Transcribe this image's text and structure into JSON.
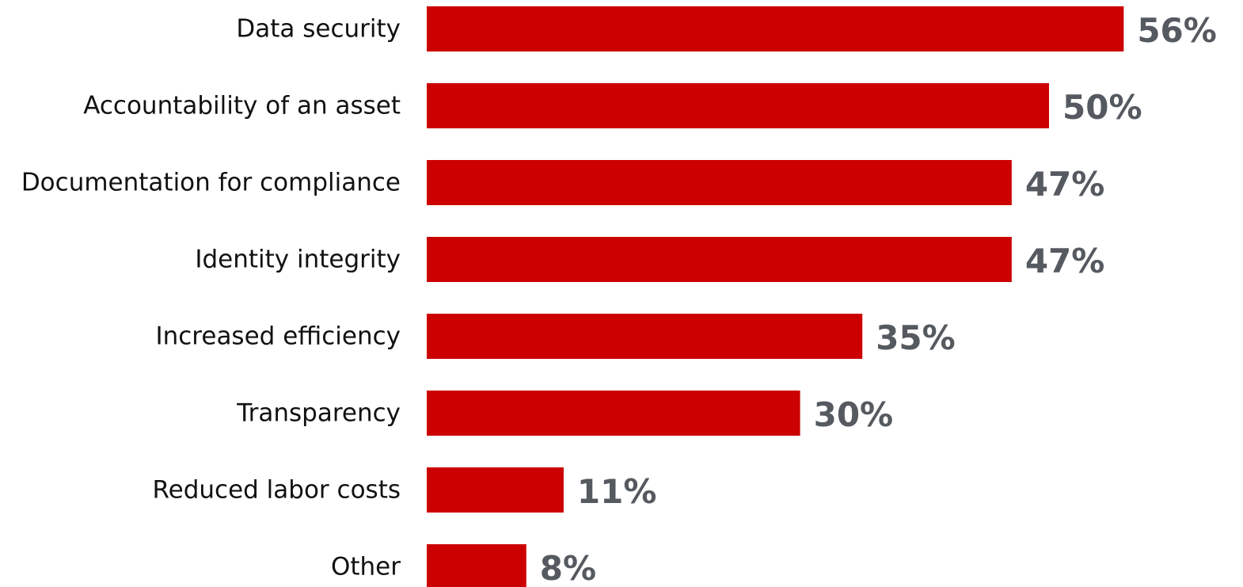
{
  "chart_data": {
    "type": "bar",
    "orientation": "horizontal",
    "title": "",
    "xlabel": "",
    "ylabel": "",
    "xlim": [
      0,
      100
    ],
    "grid": false,
    "legend": "none",
    "categories": [
      "Data security",
      "Accountability of an asset",
      "Documentation for compliance",
      "Identity integrity",
      "Increased efficiency",
      "Transparency",
      "Reduced labor costs",
      "Other"
    ],
    "values": [
      56,
      50,
      47,
      47,
      35,
      30,
      11,
      8
    ],
    "value_labels": [
      "56%",
      "50%",
      "47%",
      "47%",
      "35%",
      "30%",
      "11%",
      "8%"
    ],
    "colors": {
      "bar": "#cc0000",
      "value_label": "#555a60",
      "category_label": "#111111"
    }
  }
}
